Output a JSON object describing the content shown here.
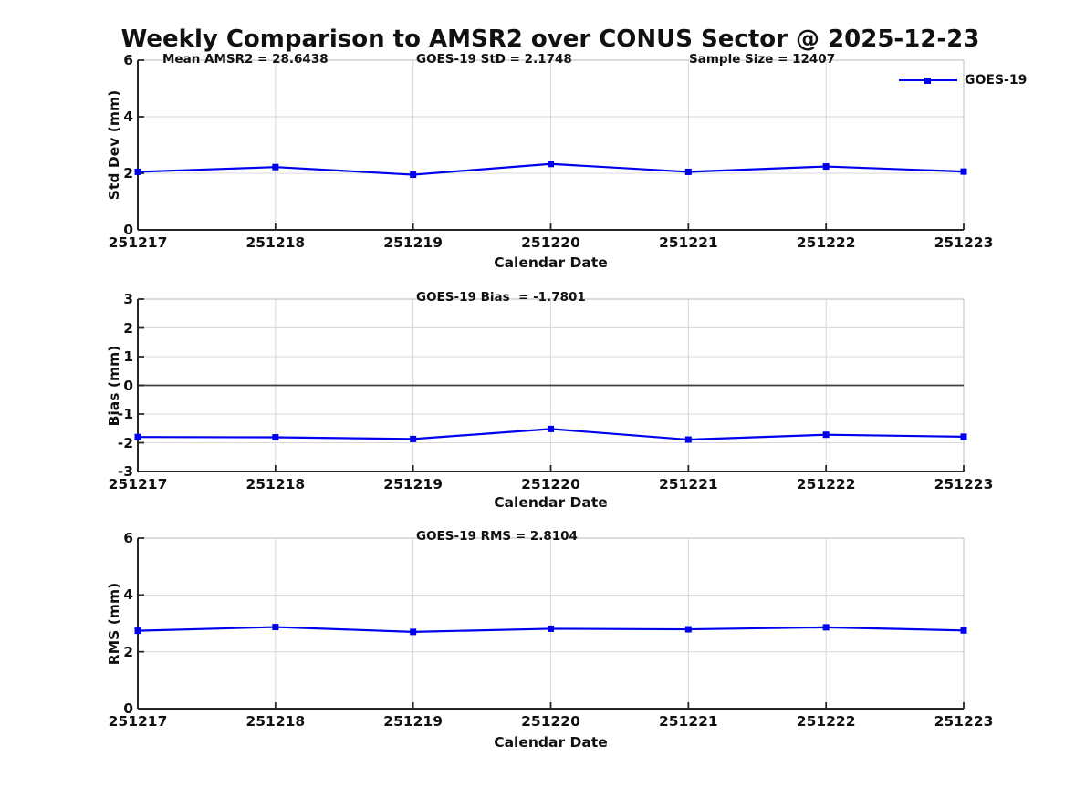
{
  "title": "Weekly Comparison to AMSR2 over CONUS Sector @ 2025-12-23",
  "legend": {
    "label": "GOES-19"
  },
  "colors": {
    "line": "#0000EE",
    "grid": "#D8D8D8",
    "frame": "#C8C8C8",
    "axis": "#262626",
    "zero_line": "#404040",
    "text": "#111111",
    "background": "#FFFFFF"
  },
  "chart_data": [
    {
      "type": "line",
      "panel": "std-dev",
      "annotations": [
        "Mean AMSR2 = 28.6438",
        "GOES-19 StD = 2.1748",
        "Sample Size = 12407"
      ],
      "ylabel": "Std Dev (mm)",
      "xlabel": "Calendar Date",
      "categories": [
        "251217",
        "251218",
        "251219",
        "251220",
        "251221",
        "251222",
        "251223"
      ],
      "series": [
        {
          "name": "GOES-19",
          "values": [
            2.05,
            2.22,
            1.95,
            2.33,
            2.05,
            2.24,
            2.06
          ]
        }
      ],
      "ylim": [
        0,
        6
      ],
      "yticks": [
        0,
        2,
        4,
        6
      ],
      "grid": true,
      "zero_line": false,
      "legend_position": "top-right"
    },
    {
      "type": "line",
      "panel": "bias",
      "annotations": [
        "GOES-19 Bias  = -1.7801"
      ],
      "ylabel": "Bias (mm)",
      "xlabel": "Calendar Date",
      "categories": [
        "251217",
        "251218",
        "251219",
        "251220",
        "251221",
        "251222",
        "251223"
      ],
      "series": [
        {
          "name": "GOES-19",
          "values": [
            -1.8,
            -1.81,
            -1.87,
            -1.52,
            -1.89,
            -1.72,
            -1.79
          ]
        }
      ],
      "ylim": [
        -3,
        3
      ],
      "yticks": [
        -3,
        -2,
        -1,
        0,
        1,
        2,
        3
      ],
      "grid": true,
      "zero_line": true,
      "legend_position": "none"
    },
    {
      "type": "line",
      "panel": "rms",
      "annotations": [
        "GOES-19 RMS = 2.8104"
      ],
      "ylabel": "RMS (mm)",
      "xlabel": "Calendar Date",
      "categories": [
        "251217",
        "251218",
        "251219",
        "251220",
        "251221",
        "251222",
        "251223"
      ],
      "series": [
        {
          "name": "GOES-19",
          "values": [
            2.74,
            2.87,
            2.7,
            2.81,
            2.79,
            2.86,
            2.75
          ]
        }
      ],
      "ylim": [
        0,
        6
      ],
      "yticks": [
        0,
        2,
        4,
        6
      ],
      "grid": true,
      "zero_line": false,
      "legend_position": "none"
    }
  ]
}
